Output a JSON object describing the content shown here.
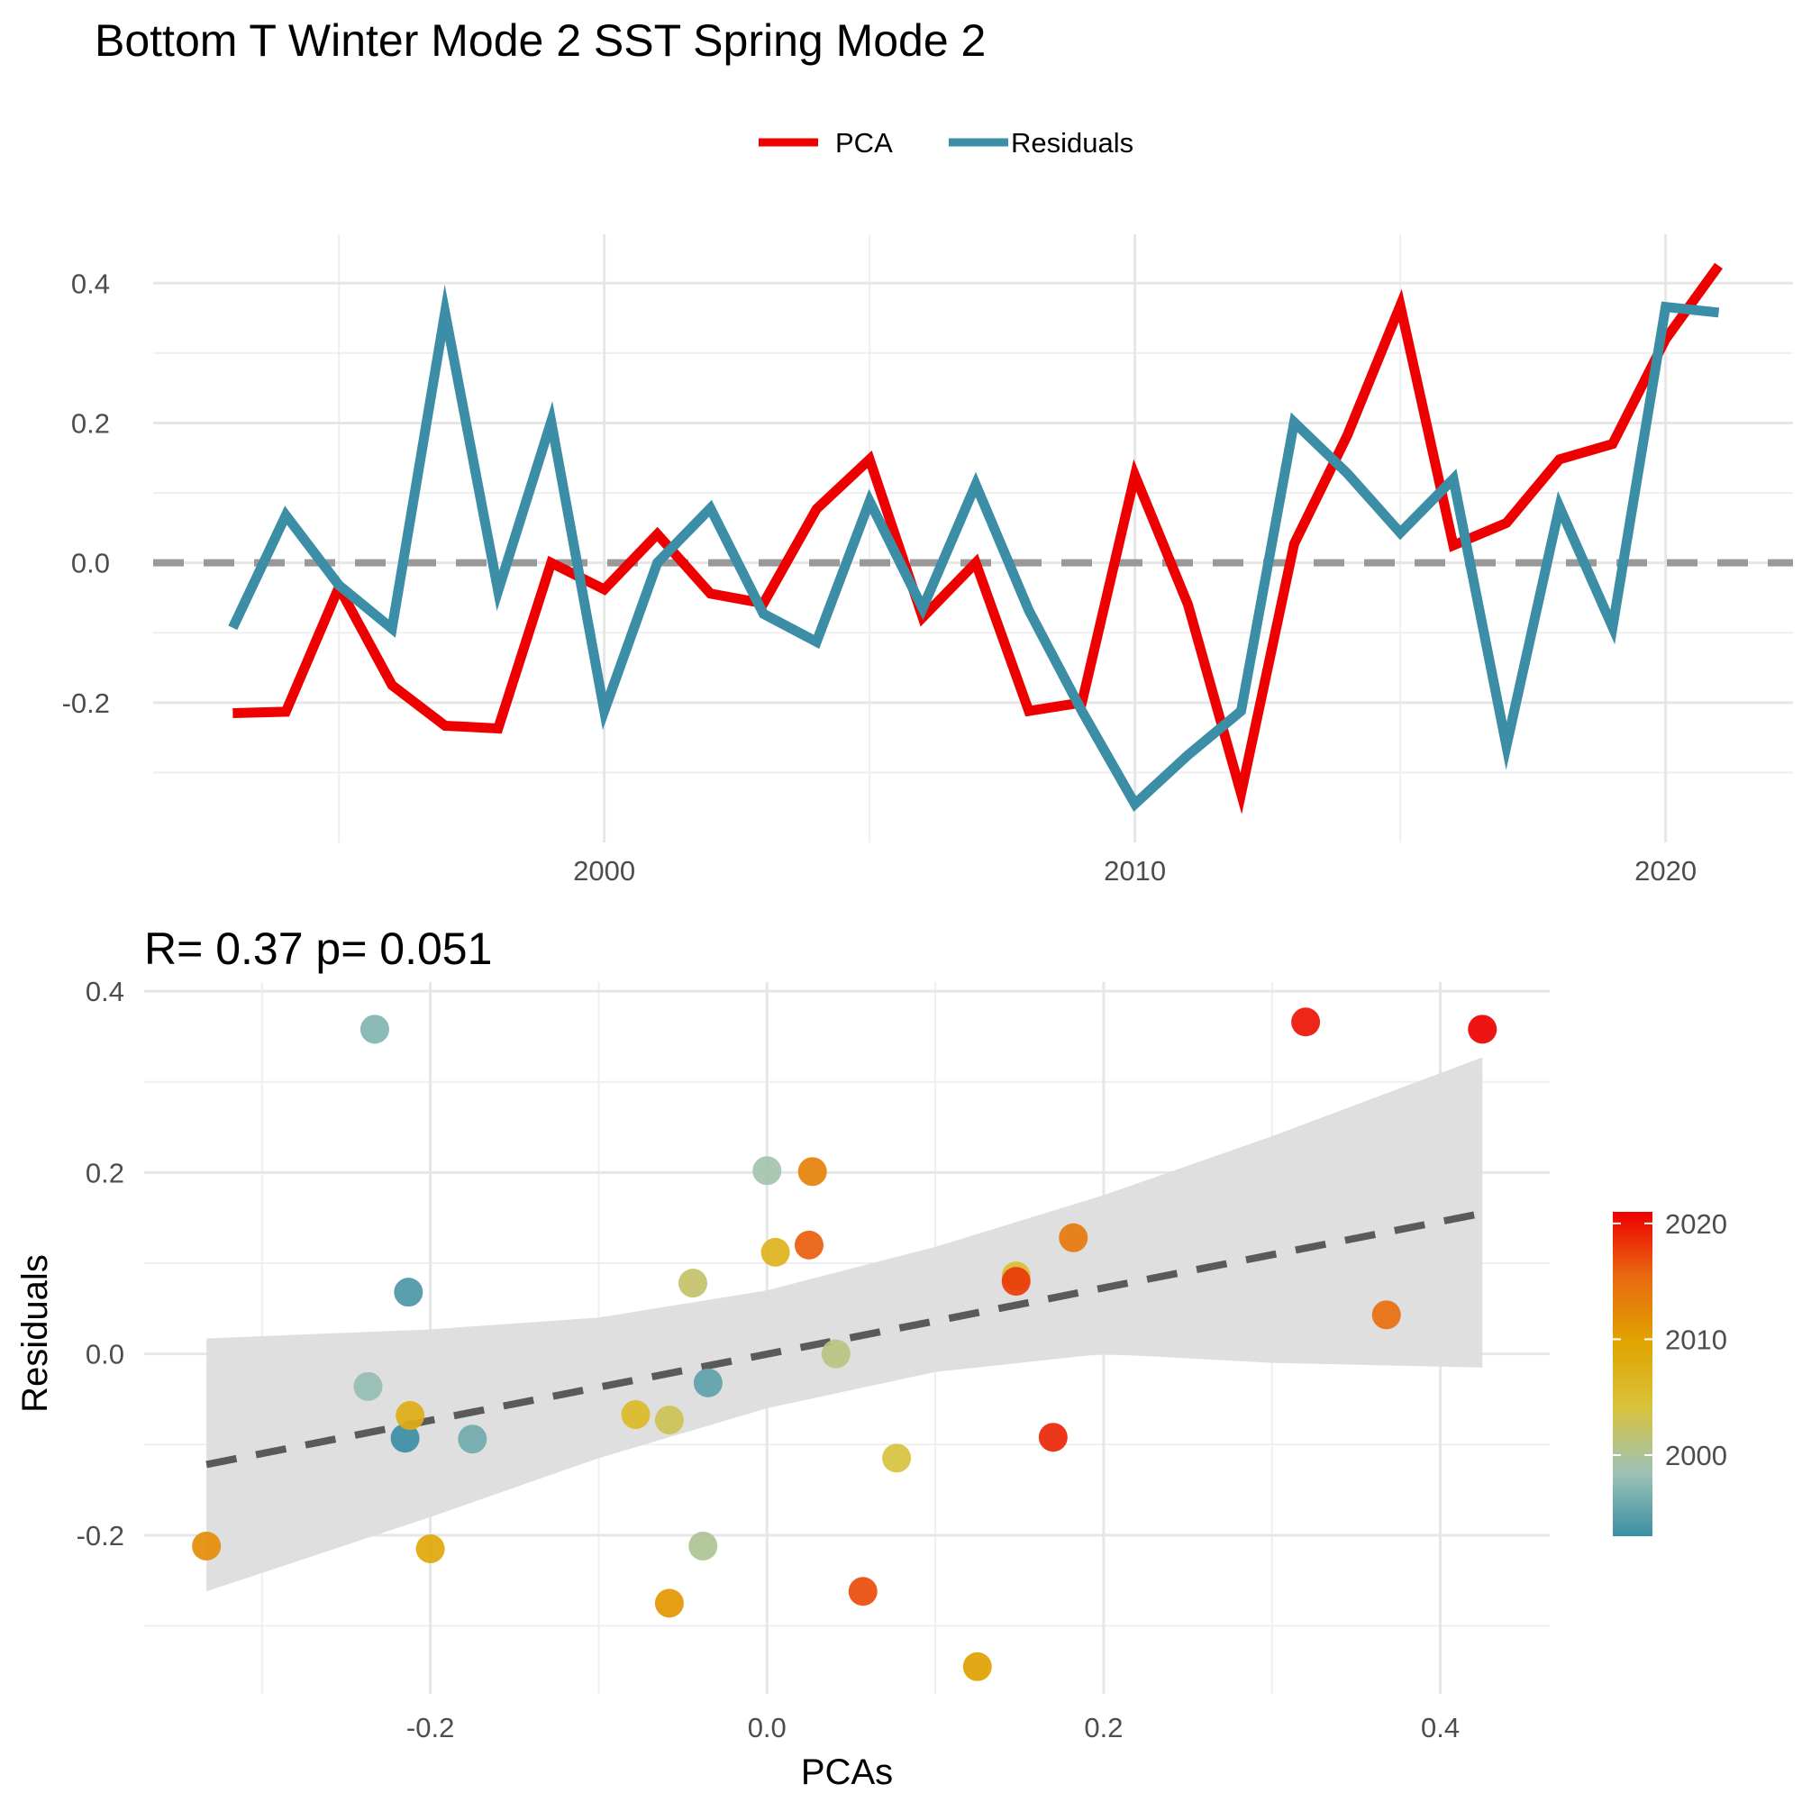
{
  "title": "Bottom T Winter Mode 2 SST Spring Mode 2",
  "colors": {
    "pca": "#EE0000",
    "residuals": "#3B8EA5",
    "zero_line": "#999999",
    "fit_line": "#5a5a5a",
    "ribbon": "#dddddd",
    "gradient": [
      "#3B8EA5",
      "#9FC3B5",
      "#D9C23A",
      "#E1A300",
      "#E86A10",
      "#EE0000"
    ]
  },
  "chart_data": [
    {
      "type": "line",
      "legend": {
        "position": "top",
        "entries": [
          "PCA",
          "Residuals"
        ]
      },
      "x": [
        1993,
        1994,
        1995,
        1996,
        1997,
        1998,
        1999,
        2000,
        2001,
        2002,
        2003,
        2004,
        2005,
        2006,
        2007,
        2008,
        2009,
        2010,
        2011,
        2012,
        2013,
        2014,
        2015,
        2016,
        2017,
        2018,
        2019,
        2020,
        2021
      ],
      "series": [
        {
          "name": "PCA",
          "values": [
            -0.215,
            -0.213,
            -0.035,
            -0.175,
            -0.233,
            -0.237,
            0.0,
            -0.038,
            0.041,
            -0.044,
            -0.058,
            0.077,
            0.148,
            -0.078,
            0.0,
            -0.212,
            -0.2,
            0.125,
            -0.06,
            -0.33,
            0.027,
            0.182,
            0.368,
            0.025,
            0.057,
            0.148,
            0.17,
            0.32,
            0.425
          ]
        },
        {
          "name": "Residuals",
          "values": [
            -0.093,
            0.068,
            -0.032,
            -0.094,
            0.358,
            -0.04,
            0.202,
            -0.212,
            0.0,
            0.078,
            -0.073,
            -0.113,
            0.088,
            -0.065,
            0.112,
            -0.068,
            -0.212,
            -0.345,
            -0.275,
            -0.212,
            0.201,
            0.128,
            0.043,
            0.12,
            -0.262,
            0.08,
            -0.092,
            0.366,
            0.358
          ]
        }
      ],
      "xlim": [
        1991.5,
        2022.4
      ],
      "ylim": [
        -0.4,
        0.47
      ],
      "x_ticks": [
        "2000",
        "2010",
        "2020"
      ],
      "y_ticks": [
        "-0.2",
        "0.0",
        "0.2",
        "0.4"
      ],
      "grid": true
    },
    {
      "type": "scatter",
      "title": "R= 0.37  p= 0.051",
      "xlabel": "PCAs",
      "ylabel": "Residuals",
      "x_ticks": [
        "-0.2",
        "0.0",
        "0.2",
        "0.4"
      ],
      "y_ticks": [
        "-0.2",
        "0.0",
        "0.2",
        "0.4"
      ],
      "xlim": [
        -0.37,
        0.465
      ],
      "ylim": [
        -0.375,
        0.41
      ],
      "grid": true,
      "fit": {
        "x": [
          -0.333,
          0.425
        ],
        "y": [
          -0.122,
          0.155
        ]
      },
      "ribbon": {
        "x": [
          -0.333,
          -0.2,
          -0.1,
          0.0,
          0.1,
          0.2,
          0.3,
          0.425
        ],
        "upper": [
          0.017,
          0.027,
          0.04,
          0.07,
          0.118,
          0.175,
          0.24,
          0.327
        ],
        "lower": [
          -0.262,
          -0.18,
          -0.115,
          -0.06,
          -0.02,
          0.0,
          -0.01,
          -0.015
        ]
      },
      "colorbar": {
        "min": 1993,
        "max": 2021,
        "ticks": [
          "2000",
          "2010",
          "2020"
        ],
        "position": "right"
      },
      "points": [
        {
          "x": -0.215,
          "y": -0.093,
          "year": 1993
        },
        {
          "x": -0.213,
          "y": 0.068,
          "year": 1994
        },
        {
          "x": -0.035,
          "y": -0.032,
          "year": 1995
        },
        {
          "x": -0.175,
          "y": -0.094,
          "year": 1996
        },
        {
          "x": -0.233,
          "y": 0.358,
          "year": 1997
        },
        {
          "x": -0.237,
          "y": -0.036,
          "year": 1998
        },
        {
          "x": 0.0,
          "y": 0.202,
          "year": 1999
        },
        {
          "x": -0.038,
          "y": -0.212,
          "year": 2000
        },
        {
          "x": 0.041,
          "y": 0.0,
          "year": 2001
        },
        {
          "x": -0.044,
          "y": 0.078,
          "year": 2002
        },
        {
          "x": -0.058,
          "y": -0.073,
          "year": 2003
        },
        {
          "x": 0.077,
          "y": -0.115,
          "year": 2004
        },
        {
          "x": 0.148,
          "y": 0.086,
          "year": 2005
        },
        {
          "x": -0.078,
          "y": -0.067,
          "year": 2006
        },
        {
          "x": 0.005,
          "y": 0.112,
          "year": 2007
        },
        {
          "x": -0.212,
          "y": -0.068,
          "year": 2008
        },
        {
          "x": -0.2,
          "y": -0.215,
          "year": 2009
        },
        {
          "x": 0.125,
          "y": -0.345,
          "year": 2010
        },
        {
          "x": -0.058,
          "y": -0.275,
          "year": 2011
        },
        {
          "x": -0.333,
          "y": -0.212,
          "year": 2012
        },
        {
          "x": 0.027,
          "y": 0.201,
          "year": 2013
        },
        {
          "x": 0.182,
          "y": 0.128,
          "year": 2014
        },
        {
          "x": 0.368,
          "y": 0.043,
          "year": 2015
        },
        {
          "x": 0.025,
          "y": 0.12,
          "year": 2016
        },
        {
          "x": 0.057,
          "y": -0.262,
          "year": 2017
        },
        {
          "x": 0.148,
          "y": 0.08,
          "year": 2018
        },
        {
          "x": 0.17,
          "y": -0.092,
          "year": 2019
        },
        {
          "x": 0.32,
          "y": 0.366,
          "year": 2020
        },
        {
          "x": 0.425,
          "y": 0.358,
          "year": 2021
        }
      ]
    }
  ]
}
